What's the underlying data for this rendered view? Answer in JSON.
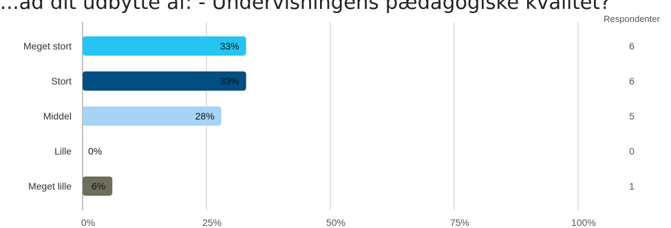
{
  "title": "...ad dit udbytte af:   - Undervisningens pædagogiske kvalitet?",
  "chart_data": {
    "type": "bar",
    "orientation": "horizontal",
    "title": "...ad dit udbytte af:   - Undervisningens pædagogiske kvalitet?",
    "count_header": "Respondenter",
    "categories": [
      "Meget stort",
      "Stort",
      "Middel",
      "Lille",
      "Meget lille"
    ],
    "values": [
      33,
      33,
      28,
      0,
      6
    ],
    "value_labels": [
      "33%",
      "33%",
      "28%",
      "0%",
      "6%"
    ],
    "counts": [
      "6",
      "6",
      "5",
      "0",
      "1"
    ],
    "colors": [
      "#25c4f2",
      "#004e82",
      "#a7d3f5",
      "#ffffff",
      "#6e6e5c"
    ],
    "xlim": [
      0,
      100
    ],
    "xticks": [
      0,
      25,
      50,
      75,
      100
    ],
    "xtick_labels": [
      "0%",
      "25%",
      "50%",
      "75%",
      "100%"
    ],
    "grid": true
  }
}
